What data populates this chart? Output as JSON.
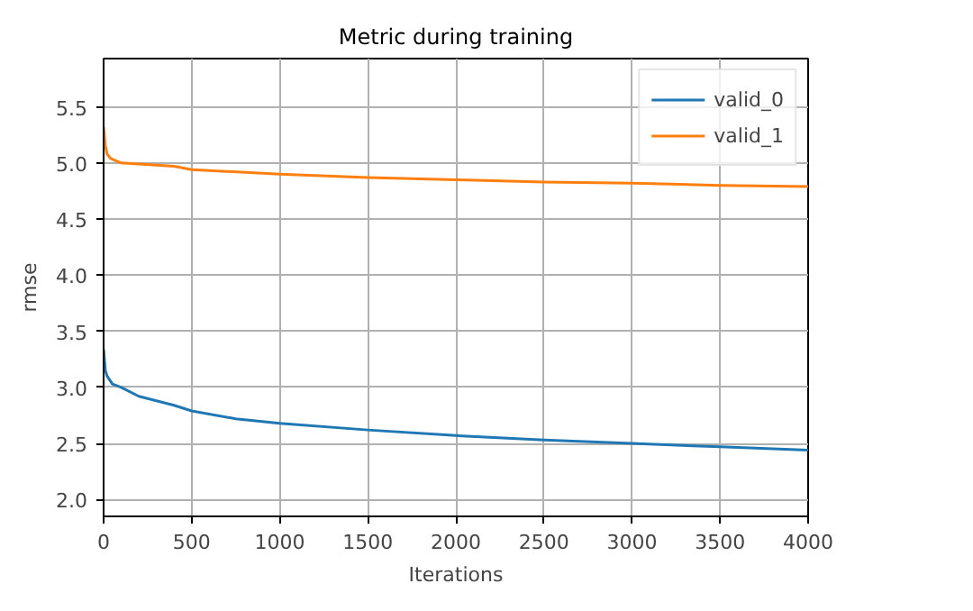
{
  "chart_data": {
    "type": "line",
    "title": "Metric during training",
    "xlabel": "Iterations",
    "ylabel": "rmse",
    "xlim": [
      0,
      4000
    ],
    "xticks": [
      0,
      500,
      1000,
      1500,
      2000,
      2500,
      3000,
      3500,
      4000
    ],
    "ylim": [
      1.85,
      5.93
    ],
    "yticks": [
      {
        "value": 2,
        "label": "2.0"
      },
      2.5,
      {
        "value": 3,
        "label": "3.0"
      },
      3.5,
      {
        "value": 4,
        "label": "4.0"
      },
      4.5,
      {
        "value": 5,
        "label": "5.0"
      },
      5.5
    ],
    "grid": true,
    "legend": "top right",
    "series": [
      {
        "name": "valid_0",
        "color": "#1f77b4",
        "x": [
          0,
          10,
          20,
          50,
          100,
          200,
          300,
          400,
          500,
          750,
          1000,
          1500,
          2000,
          2500,
          3000,
          3500,
          4000
        ],
        "values": [
          3.34,
          3.15,
          3.1,
          3.03,
          3.0,
          2.92,
          2.88,
          2.84,
          2.79,
          2.72,
          2.68,
          2.62,
          2.57,
          2.53,
          2.5,
          2.47,
          2.44
        ]
      },
      {
        "name": "valid_1",
        "color": "#ff7f0e",
        "x": [
          0,
          10,
          20,
          40,
          100,
          200,
          400,
          500,
          1000,
          1500,
          2000,
          2500,
          3000,
          3500,
          4000
        ],
        "values": [
          5.32,
          5.15,
          5.08,
          5.04,
          5.0,
          4.99,
          4.97,
          4.94,
          4.9,
          4.87,
          4.85,
          4.83,
          4.82,
          4.8,
          4.79
        ]
      }
    ]
  }
}
